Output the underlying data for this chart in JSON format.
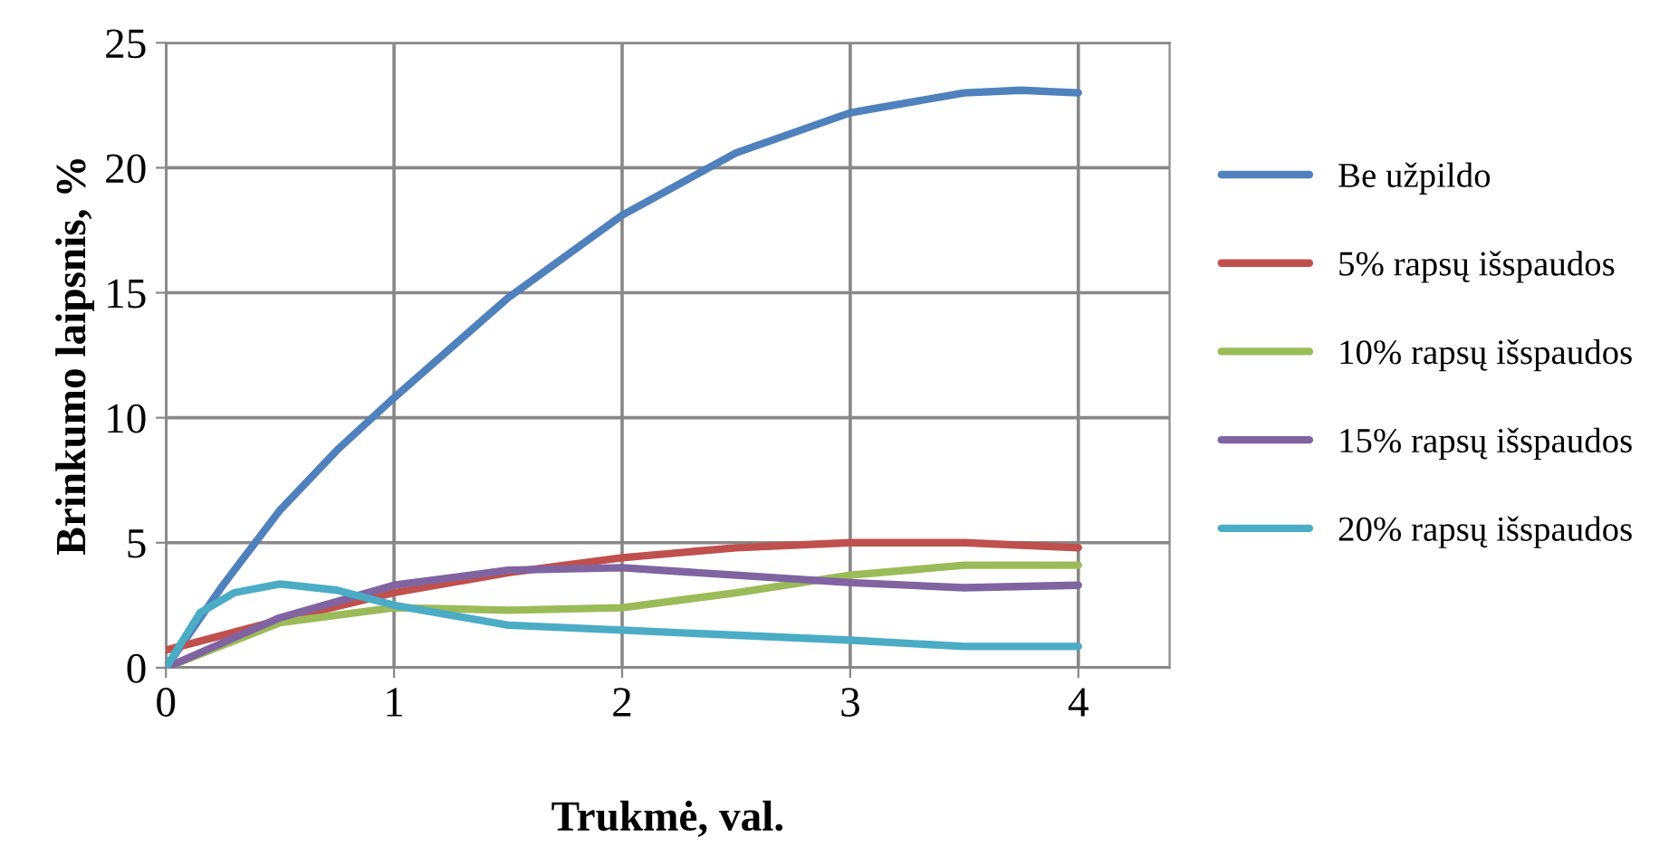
{
  "chart_data": {
    "type": "line",
    "xlabel": "Trukmė, val.",
    "ylabel": "Brinkumo laipsnis, %",
    "xlim": [
      0,
      4.4
    ],
    "xticks": [
      0,
      1,
      2,
      3,
      4
    ],
    "ylim": [
      0,
      25
    ],
    "yticks": [
      0,
      5,
      10,
      15,
      20,
      25
    ],
    "grid": true,
    "legend": "right",
    "marker": "none",
    "line_style": "solid",
    "series": [
      {
        "name": "Be užpildo",
        "color": "#4f81bd",
        "x": [
          0,
          0.25,
          0.5,
          0.75,
          1,
          1.5,
          2,
          2.5,
          3,
          3.5,
          3.75,
          4
        ],
        "values": [
          0,
          3.3,
          6.3,
          8.7,
          10.8,
          14.8,
          18.1,
          20.6,
          22.2,
          23.0,
          23.1,
          23.0
        ]
      },
      {
        "name": "5% rapsų išspaudos",
        "color": "#c0504d",
        "x": [
          0,
          0.5,
          1,
          1.5,
          2,
          2.5,
          3,
          3.5,
          4
        ],
        "values": [
          0.7,
          1.9,
          3.0,
          3.8,
          4.4,
          4.8,
          5.0,
          5.0,
          4.8
        ]
      },
      {
        "name": "10% rapsų išspaudos",
        "color": "#9bbb59",
        "x": [
          0,
          0.5,
          1,
          1.5,
          2,
          2.5,
          3,
          3.5,
          4
        ],
        "values": [
          0,
          1.8,
          2.4,
          2.3,
          2.4,
          3.0,
          3.7,
          4.1,
          4.1
        ]
      },
      {
        "name": "15% rapsų išspaudos",
        "color": "#8064a2",
        "x": [
          0,
          0.5,
          1,
          1.5,
          2,
          2.5,
          3,
          3.5,
          4
        ],
        "values": [
          0,
          2.0,
          3.3,
          3.9,
          4.0,
          3.7,
          3.4,
          3.2,
          3.3
        ]
      },
      {
        "name": "20% rapsų išspaudos",
        "color": "#4bacc6",
        "x": [
          0,
          0.15,
          0.3,
          0.5,
          0.75,
          1,
          1.5,
          2,
          2.5,
          3,
          3.5,
          4
        ],
        "values": [
          0,
          2.2,
          3.0,
          3.35,
          3.1,
          2.5,
          1.7,
          1.5,
          1.3,
          1.1,
          0.85,
          0.85
        ]
      }
    ]
  }
}
